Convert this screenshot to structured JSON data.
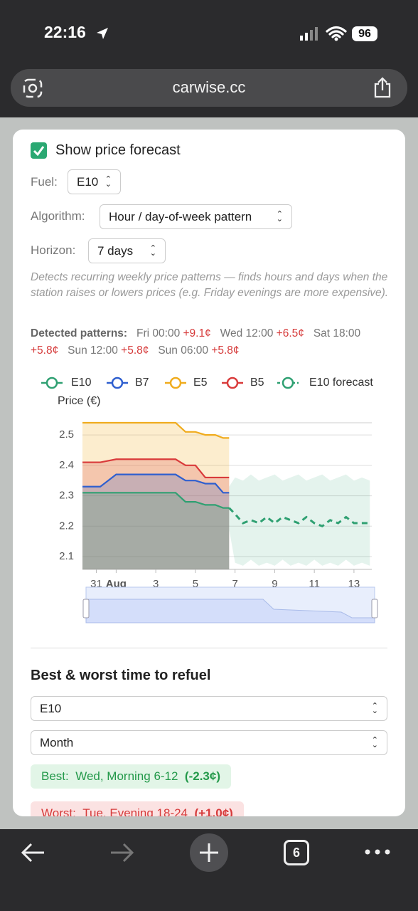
{
  "status_bar": {
    "time": "22:16",
    "battery": "96"
  },
  "url_bar": {
    "url": "carwise.cc"
  },
  "panel": {
    "checkbox_label": "Show price forecast",
    "fuel": {
      "label": "Fuel:",
      "value": "E10"
    },
    "algorithm": {
      "label": "Algorithm:",
      "value": "Hour / day-of-week pattern"
    },
    "horizon": {
      "label": "Horizon:",
      "value": "7 days"
    },
    "description": "Detects recurring weekly price patterns — finds hours and days when the station raises or lowers prices (e.g. Friday evenings are more expensive).",
    "patterns": {
      "label": "Detected patterns:",
      "items": [
        {
          "time": "Fri 00:00",
          "delta": "+9.1¢"
        },
        {
          "time": "Wed 12:00",
          "delta": "+6.5¢"
        },
        {
          "time": "Sat 18:00",
          "delta": "+5.8¢"
        },
        {
          "time": "Sun 12:00",
          "delta": "+5.8¢"
        },
        {
          "time": "Sun 06:00",
          "delta": "+5.8¢"
        }
      ]
    }
  },
  "chart_data": {
    "type": "line",
    "y_label": "Price (€)",
    "x": [
      -0.7,
      0.2,
      1,
      2,
      3,
      4,
      4.5,
      5,
      5.5,
      6,
      6.4,
      6.7,
      7,
      7.4,
      7.8,
      8.2,
      8.6,
      9,
      9.4,
      9.8,
      10.2,
      10.6,
      11,
      11.4,
      11.8,
      12.2,
      12.6,
      13,
      13.4,
      13.8
    ],
    "xlim": [
      -0.7,
      13.9
    ],
    "xticks": [
      {
        "value": 0,
        "label": "31"
      },
      {
        "value": 1,
        "label": "Aug"
      },
      3,
      5,
      7,
      9,
      11,
      13
    ],
    "ylim": [
      2.058,
      2.54
    ],
    "yticks": [
      2.1,
      2.2,
      2.3,
      2.4,
      2.5
    ],
    "grid": true,
    "series": [
      {
        "name": "E10",
        "color": "#2fa072",
        "values": [
          2.31,
          2.31,
          2.31,
          2.31,
          2.31,
          2.31,
          2.28,
          2.28,
          2.27,
          2.27,
          2.26,
          2.26,
          null,
          null,
          null,
          null,
          null,
          null,
          null,
          null,
          null,
          null,
          null,
          null,
          null,
          null,
          null,
          null,
          null,
          null
        ]
      },
      {
        "name": "B7",
        "color": "#2f5fcf",
        "values": [
          2.33,
          2.33,
          2.37,
          2.37,
          2.37,
          2.37,
          2.35,
          2.35,
          2.34,
          2.34,
          2.31,
          2.31,
          null,
          null,
          null,
          null,
          null,
          null,
          null,
          null,
          null,
          null,
          null,
          null,
          null,
          null,
          null,
          null,
          null,
          null
        ]
      },
      {
        "name": "E5",
        "color": "#f0ac1e",
        "values": [
          2.54,
          2.54,
          2.54,
          2.54,
          2.54,
          2.54,
          2.51,
          2.51,
          2.5,
          2.5,
          2.49,
          2.49,
          null,
          null,
          null,
          null,
          null,
          null,
          null,
          null,
          null,
          null,
          null,
          null,
          null,
          null,
          null,
          null,
          null,
          null
        ]
      },
      {
        "name": "B5",
        "color": "#d93b3b",
        "values": [
          2.41,
          2.41,
          2.42,
          2.42,
          2.42,
          2.42,
          2.4,
          2.4,
          2.36,
          2.36,
          2.36,
          2.36,
          null,
          null,
          null,
          null,
          null,
          null,
          null,
          null,
          null,
          null,
          null,
          null,
          null,
          null,
          null,
          null,
          null,
          null
        ]
      },
      {
        "name": "E10 forecast",
        "color": "#2fa072",
        "dashed": true,
        "values": [
          null,
          null,
          null,
          null,
          null,
          null,
          null,
          null,
          null,
          null,
          null,
          2.26,
          2.24,
          2.21,
          2.22,
          2.21,
          2.23,
          2.21,
          2.23,
          2.22,
          2.21,
          2.23,
          2.21,
          2.2,
          2.22,
          2.21,
          2.23,
          2.21,
          2.21,
          2.21
        ],
        "upper": [
          null,
          null,
          null,
          null,
          null,
          null,
          null,
          null,
          null,
          null,
          null,
          2.33,
          2.36,
          2.35,
          2.37,
          2.35,
          2.36,
          2.37,
          2.35,
          2.36,
          2.37,
          2.35,
          2.36,
          2.37,
          2.35,
          2.36,
          2.37,
          2.35,
          2.36,
          2.35
        ],
        "lower": [
          null,
          null,
          null,
          null,
          null,
          null,
          null,
          null,
          null,
          null,
          null,
          2.19,
          2.08,
          2.07,
          2.09,
          2.07,
          2.08,
          2.07,
          2.09,
          2.07,
          2.08,
          2.07,
          2.09,
          2.07,
          2.08,
          2.07,
          2.09,
          2.07,
          2.08,
          2.07
        ]
      }
    ]
  },
  "refuel": {
    "title": "Best & worst time to refuel",
    "fuel": "E10",
    "period": "Month",
    "best": {
      "label": "Best:",
      "text": "Wed, Morning 6-12",
      "delta": "(-2.3¢)"
    },
    "worst": {
      "label": "Worst:",
      "text": "Tue, Evening 18-24",
      "delta": "(+1.0¢)"
    }
  },
  "toolbar": {
    "tab_count": "6"
  }
}
